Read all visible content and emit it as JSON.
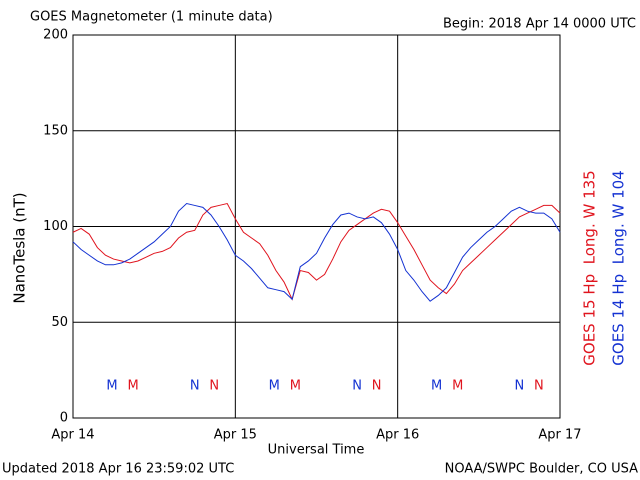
{
  "chart_data": {
    "type": "line",
    "title": "GOES Magnetometer (1 minute data)",
    "subtitle": "Begin:  2018 Apr 14 0000 UTC",
    "xlabel": "Universal Time",
    "ylabel": "NanoTesla (nT)",
    "footer_left": "Updated 2018 Apr 16 23:59:02 UTC",
    "footer_right": "NOAA/SWPC Boulder, CO USA",
    "xlim": [
      0,
      3
    ],
    "xticks": [
      {
        "value": 0,
        "label": "Apr 14"
      },
      {
        "value": 1,
        "label": "Apr 15"
      },
      {
        "value": 2,
        "label": "Apr 16"
      },
      {
        "value": 3,
        "label": "Apr 17"
      }
    ],
    "ylim": [
      0,
      200
    ],
    "yticks": [
      0,
      50,
      100,
      150,
      200
    ],
    "grid": true,
    "x": [
      0,
      0.05,
      0.1,
      0.15,
      0.2,
      0.25,
      0.3,
      0.35,
      0.4,
      0.45,
      0.5,
      0.55,
      0.6,
      0.65,
      0.7,
      0.75,
      0.8,
      0.85,
      0.9,
      0.95,
      1,
      1.05,
      1.1,
      1.15,
      1.2,
      1.25,
      1.3,
      1.35,
      1.4,
      1.45,
      1.5,
      1.55,
      1.6,
      1.65,
      1.7,
      1.75,
      1.8,
      1.85,
      1.9,
      1.95,
      2,
      2.05,
      2.1,
      2.15,
      2.2,
      2.25,
      2.3,
      2.35,
      2.4,
      2.45,
      2.5,
      2.55,
      2.6,
      2.65,
      2.7,
      2.75,
      2.8,
      2.85,
      2.9,
      2.95,
      3
    ],
    "series": [
      {
        "name": "GOES 15 Hp  Long. W 135",
        "color": "#e0141e",
        "values": [
          97,
          99,
          96,
          89,
          85,
          83,
          82,
          81,
          82,
          84,
          86,
          87,
          89,
          94,
          97,
          98,
          106,
          110,
          111,
          112,
          104,
          97,
          94,
          91,
          85,
          77,
          71,
          62,
          77,
          76,
          72,
          75,
          83,
          92,
          98,
          101,
          104,
          107,
          109,
          108,
          102,
          95,
          88,
          80,
          72,
          68,
          65,
          70,
          77,
          81,
          85,
          89,
          93,
          97,
          101,
          105,
          107,
          109,
          111,
          111,
          107
        ]
      },
      {
        "name": "GOES 14 Hp  Long. W 104",
        "color": "#1432d2",
        "values": [
          92,
          88,
          85,
          82,
          80,
          80,
          81,
          83,
          86,
          89,
          92,
          96,
          100,
          108,
          112,
          111,
          110,
          106,
          100,
          93,
          85,
          82,
          78,
          73,
          68,
          67,
          66,
          62,
          79,
          82,
          86,
          94,
          101,
          106,
          107,
          105,
          104,
          105,
          102,
          96,
          88,
          77,
          72,
          66,
          61,
          64,
          68,
          76,
          84,
          89,
          93,
          97,
          100,
          104,
          108,
          110,
          108,
          107,
          107,
          104,
          97
        ]
      }
    ],
    "annotations": [
      {
        "text": "M",
        "x": 0.24,
        "color": "#1432d2"
      },
      {
        "text": "M",
        "x": 0.37,
        "color": "#e0141e"
      },
      {
        "text": "N",
        "x": 0.75,
        "color": "#1432d2"
      },
      {
        "text": "N",
        "x": 0.87,
        "color": "#e0141e"
      },
      {
        "text": "M",
        "x": 1.24,
        "color": "#1432d2"
      },
      {
        "text": "M",
        "x": 1.37,
        "color": "#e0141e"
      },
      {
        "text": "N",
        "x": 1.75,
        "color": "#1432d2"
      },
      {
        "text": "N",
        "x": 1.87,
        "color": "#e0141e"
      },
      {
        "text": "M",
        "x": 2.24,
        "color": "#1432d2"
      },
      {
        "text": "M",
        "x": 2.37,
        "color": "#e0141e"
      },
      {
        "text": "N",
        "x": 2.75,
        "color": "#1432d2"
      },
      {
        "text": "N",
        "x": 2.87,
        "color": "#e0141e"
      }
    ]
  }
}
